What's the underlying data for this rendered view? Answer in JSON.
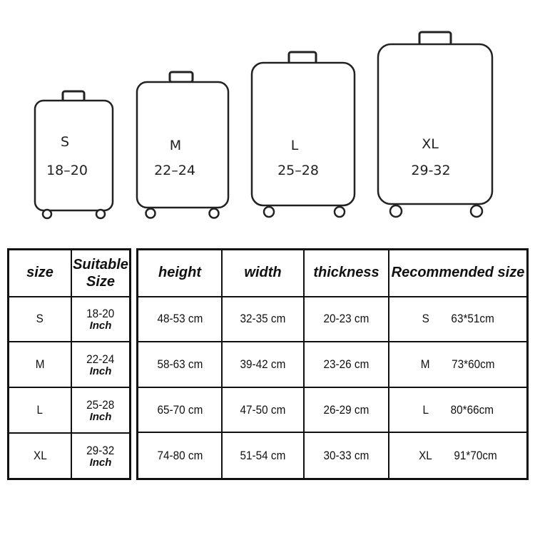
{
  "suitcases": [
    {
      "size": "S",
      "range": "18–20"
    },
    {
      "size": "M",
      "range": "22–24"
    },
    {
      "size": "L",
      "range": "25–28"
    },
    {
      "size": "XL",
      "range": "29-32"
    }
  ],
  "left_table": {
    "headers": [
      "size",
      "Suitable Size"
    ],
    "unit": "Inch",
    "rows": [
      {
        "size": "S",
        "range": "18-20"
      },
      {
        "size": "M",
        "range": "22-24"
      },
      {
        "size": "L",
        "range": "25-28"
      },
      {
        "size": "XL",
        "range": "29-32"
      }
    ]
  },
  "right_table": {
    "headers": [
      "height",
      "width",
      "thickness",
      "Recommended size"
    ],
    "rows": [
      {
        "height": "48-53 cm",
        "width": "32-35 cm",
        "thickness": "20-23 cm",
        "rec_size": "S",
        "rec_dims": "63*51cm"
      },
      {
        "height": "58-63 cm",
        "width": "39-42 cm",
        "thickness": "23-26 cm",
        "rec_size": "M",
        "rec_dims": "73*60cm"
      },
      {
        "height": "65-70 cm",
        "width": "47-50 cm",
        "thickness": "26-29 cm",
        "rec_size": "L",
        "rec_dims": "80*66cm"
      },
      {
        "height": "74-80 cm",
        "width": "51-54 cm",
        "thickness": "30-33 cm",
        "rec_size": "XL",
        "rec_dims": "91*70cm"
      }
    ]
  }
}
